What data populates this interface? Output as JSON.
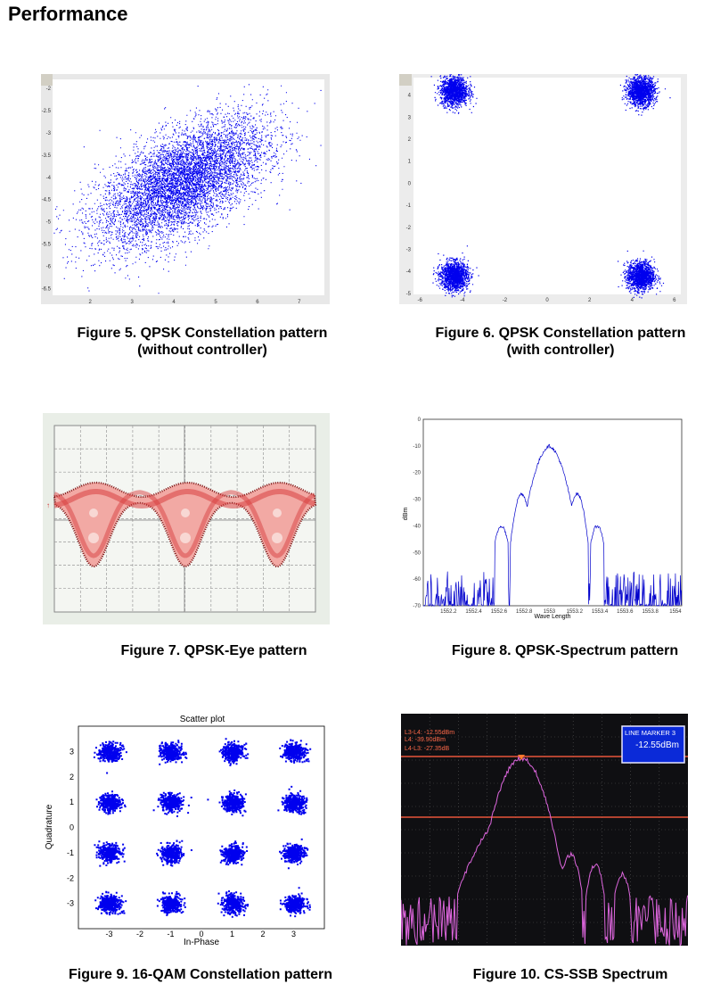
{
  "page": {
    "title": "Performance"
  },
  "captions": {
    "fig5": [
      "Figure 5. QPSK Constellation pattern",
      "(without controller)"
    ],
    "fig6": [
      "Figure 6. QPSK Constellation pattern",
      "(with controller)"
    ],
    "fig7": [
      "Figure 7. QPSK-Eye pattern"
    ],
    "fig8": [
      "Figure 8. QPSK-Spectrum pattern"
    ],
    "fig9": [
      "Figure 9. 16-QAM Constellation pattern"
    ],
    "fig10": [
      "Figure 10. CS-SSB Spectrum"
    ]
  },
  "colors": {
    "point": "#0000ee",
    "eye": "#d84040",
    "spectrum": "#0000cc",
    "ssb": "#dd66dd",
    "marker": "#ee4422"
  },
  "chart_data": [
    {
      "id": "fig5",
      "type": "scatter",
      "title": "",
      "xlim": [
        1.1,
        7.6
      ],
      "ylim": [
        -6.65,
        -1.8
      ],
      "xticks": [
        "2",
        "3",
        "4",
        "5",
        "6",
        "7"
      ],
      "yticks": [
        "-2",
        "-2.5",
        "-3",
        "-3.5",
        "-4",
        "-4.5",
        "-5",
        "-5.5",
        "-6",
        "-6.5"
      ],
      "cluster": {
        "cx": 4.2,
        "cy": -4.1,
        "sx": 1.0,
        "sy": 0.7,
        "corr": 0.6,
        "n": 7000
      }
    },
    {
      "id": "fig6",
      "type": "scatter",
      "title": "",
      "xlim": [
        -6.3,
        6.3
      ],
      "ylim": [
        -5.05,
        4.8
      ],
      "xticks": [
        "-6",
        "-4",
        "-2",
        "0",
        "2",
        "4",
        "6"
      ],
      "yticks": [
        "4",
        "3",
        "2",
        "1",
        "0",
        "-1",
        "-2",
        "-3",
        "-4",
        "-5"
      ],
      "clusters": [
        [
          -4.4,
          4.2
        ],
        [
          4.4,
          4.2
        ],
        [
          -4.4,
          -4.2
        ],
        [
          4.4,
          -4.2
        ]
      ],
      "spread": 0.32
    },
    {
      "id": "fig7",
      "type": "eye",
      "title": "",
      "symbols": 3,
      "grid": true
    },
    {
      "id": "fig8",
      "type": "line",
      "title": "",
      "xlabel": "Wave Length",
      "ylabel": "dBm",
      "xlim": [
        1552.0,
        1554.05
      ],
      "ylim": [
        -70,
        0
      ],
      "xticks": [
        "1552.2",
        "1552.4",
        "1552.6",
        "1552.8",
        "1553",
        "1553.2",
        "1553.4",
        "1553.6",
        "1553.8",
        "1554"
      ],
      "yticks": [
        "0",
        "-10",
        "-20",
        "-30",
        "-40",
        "-50",
        "-60",
        "-70"
      ],
      "peak": {
        "x": 1553.0,
        "y": -10
      },
      "sidelobes": [
        {
          "x": 1552.78,
          "y": -28
        },
        {
          "x": 1553.22,
          "y": -28
        },
        {
          "x": 1552.62,
          "y": -40
        },
        {
          "x": 1553.38,
          "y": -40
        }
      ]
    },
    {
      "id": "fig9",
      "type": "scatter",
      "title": "Scatter plot",
      "xlabel": "In-Phase",
      "ylabel": "Quadrature",
      "xlim": [
        -4,
        4
      ],
      "ylim": [
        -4,
        4
      ],
      "xticks": [
        "-3",
        "-2",
        "-1",
        "0",
        "1",
        "2",
        "3"
      ],
      "yticks": [
        "3",
        "2",
        "1",
        "0",
        "-1",
        "-2",
        "-3"
      ],
      "levels": [
        -3,
        -1,
        1,
        3
      ],
      "spread": 0.17
    },
    {
      "id": "fig10",
      "type": "line",
      "title": "",
      "marker_box": [
        "LINE MARKER 3",
        "-12.55dBm"
      ],
      "annotations": [
        "L3-L4: -12.55dBm",
        "L4: -39.90dBm",
        "L4-L3: -27.35dB"
      ],
      "marker_level_dbm": -12.55
    }
  ]
}
